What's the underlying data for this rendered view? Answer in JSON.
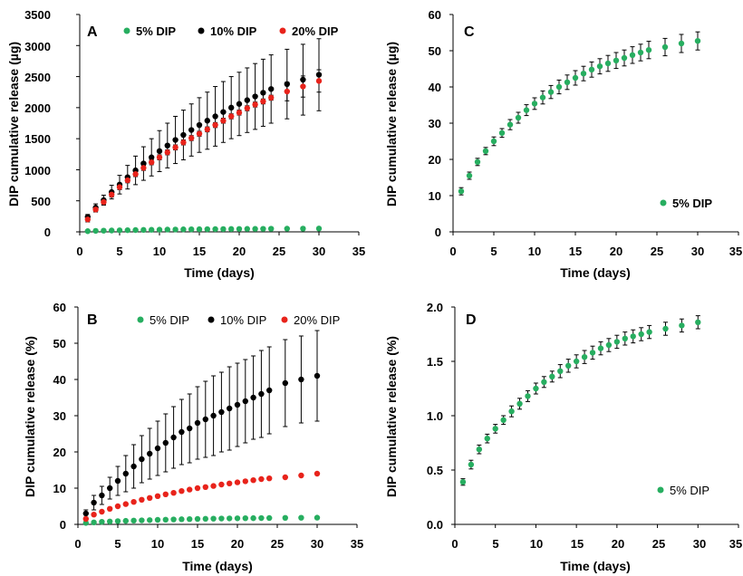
{
  "chart_data": [
    {
      "panel": "A",
      "type": "scatter",
      "xlabel": "Time (days)",
      "ylabel": "DIP cumulative release (µg)",
      "xlim": [
        0,
        35
      ],
      "ylim": [
        0,
        3500
      ],
      "xticks": [
        "0",
        "5",
        "10",
        "15",
        "20",
        "25",
        "30",
        "35"
      ],
      "yticks": [
        "0",
        "500",
        "1000",
        "1500",
        "2000",
        "2500",
        "3000",
        "3500"
      ],
      "grid": false,
      "legend_position": "top",
      "label_style": "bold",
      "x": [
        1,
        2,
        3,
        4,
        5,
        6,
        7,
        8,
        9,
        10,
        11,
        12,
        13,
        14,
        15,
        16,
        17,
        18,
        19,
        20,
        21,
        22,
        23,
        24,
        26,
        28,
        30
      ],
      "series": [
        {
          "name": "5% DIP",
          "color": "#27ae60",
          "values": [
            11,
            16,
            19,
            22,
            25,
            27,
            29,
            31,
            33,
            35,
            37,
            38,
            40,
            41,
            42,
            43,
            44,
            45,
            46,
            47,
            48,
            48,
            49,
            50,
            51,
            52,
            53
          ],
          "errors": [
            1,
            1,
            1,
            1,
            1,
            1,
            1,
            1,
            2,
            2,
            2,
            2,
            2,
            2,
            2,
            2,
            2,
            2,
            2,
            2,
            2,
            2,
            2,
            2,
            2,
            2,
            2
          ]
        },
        {
          "name": "10% DIP",
          "color": "#000000",
          "values": [
            240,
            390,
            510,
            640,
            760,
            880,
            990,
            1100,
            1200,
            1300,
            1390,
            1480,
            1560,
            1640,
            1720,
            1790,
            1860,
            1930,
            2000,
            2060,
            2120,
            2180,
            2240,
            2300,
            2380,
            2450,
            2530
          ],
          "errors": [
            40,
            60,
            80,
            110,
            150,
            190,
            230,
            270,
            300,
            330,
            360,
            380,
            400,
            420,
            440,
            460,
            480,
            490,
            500,
            510,
            520,
            530,
            540,
            550,
            560,
            570,
            580
          ]
        },
        {
          "name": "20% DIP",
          "color": "#e8231b",
          "values": [
            200,
            360,
            480,
            600,
            720,
            830,
            930,
            1030,
            1120,
            1200,
            1280,
            1360,
            1440,
            1510,
            1580,
            1650,
            1720,
            1790,
            1860,
            1920,
            1990,
            2050,
            2100,
            2160,
            2260,
            2340,
            2430
          ],
          "errors": [
            40,
            40,
            40,
            40,
            40,
            40,
            40,
            40,
            40,
            40,
            40,
            40,
            40,
            40,
            40,
            40,
            40,
            40,
            40,
            40,
            40,
            40,
            40,
            40,
            150,
            170,
            180
          ]
        }
      ]
    },
    {
      "panel": "B",
      "type": "scatter",
      "xlabel": "Time (days)",
      "ylabel": "DIP cumulative release (%)",
      "xlim": [
        0,
        35
      ],
      "ylim": [
        0,
        60
      ],
      "xticks": [
        "0",
        "5",
        "10",
        "15",
        "20",
        "25",
        "30",
        "35"
      ],
      "yticks": [
        "0",
        "10",
        "20",
        "30",
        "40",
        "50",
        "60"
      ],
      "grid": false,
      "legend_position": "top",
      "label_style": "light",
      "x": [
        1,
        2,
        3,
        4,
        5,
        6,
        7,
        8,
        9,
        10,
        11,
        12,
        13,
        14,
        15,
        16,
        17,
        18,
        19,
        20,
        21,
        22,
        23,
        24,
        26,
        28,
        30
      ],
      "series": [
        {
          "name": "5% DIP",
          "color": "#27ae60",
          "values": [
            0.4,
            0.55,
            0.7,
            0.8,
            0.9,
            0.97,
            1.05,
            1.12,
            1.18,
            1.25,
            1.3,
            1.36,
            1.41,
            1.45,
            1.5,
            1.54,
            1.58,
            1.62,
            1.65,
            1.68,
            1.7,
            1.72,
            1.74,
            1.76,
            1.8,
            1.83,
            1.85
          ],
          "errors": [
            0,
            0,
            0,
            0,
            0,
            0,
            0,
            0,
            0,
            0,
            0,
            0,
            0,
            0,
            0,
            0,
            0,
            0,
            0,
            0,
            0,
            0,
            0,
            0,
            0,
            0,
            0
          ]
        },
        {
          "name": "10% DIP",
          "color": "#000000",
          "values": [
            3,
            6,
            8,
            10,
            12,
            14,
            16,
            18,
            19.5,
            21,
            22.5,
            24,
            25.5,
            26.5,
            28,
            29,
            30,
            31,
            32,
            33,
            34,
            35,
            36,
            37,
            39,
            40,
            41
          ],
          "errors": [
            1,
            2,
            2.5,
            3,
            4,
            5,
            6,
            6.5,
            7,
            7.5,
            8,
            8.5,
            9,
            9.5,
            10,
            10.5,
            11,
            11,
            11.5,
            11.5,
            11.5,
            11.5,
            12,
            12,
            12,
            12,
            12.5
          ]
        },
        {
          "name": "20% DIP",
          "color": "#e8231b",
          "values": [
            1.5,
            2.7,
            3.5,
            4.3,
            5,
            5.6,
            6.2,
            6.8,
            7.3,
            7.8,
            8.3,
            8.7,
            9.2,
            9.6,
            10,
            10.3,
            10.6,
            11,
            11.3,
            11.6,
            11.9,
            12.2,
            12.5,
            12.7,
            13,
            13.5,
            14
          ],
          "errors": [
            0,
            0,
            0,
            0,
            0,
            0,
            0,
            0,
            0,
            0,
            0,
            0,
            0,
            0,
            0,
            0,
            0,
            0,
            0,
            0,
            0,
            0,
            0,
            0,
            0,
            0,
            0
          ]
        }
      ]
    },
    {
      "panel": "C",
      "type": "scatter",
      "xlabel": "Time (days)",
      "ylabel": "DIP cumulative release (µg)",
      "xlim": [
        0,
        35
      ],
      "ylim": [
        0,
        60
      ],
      "xticks": [
        "0",
        "5",
        "10",
        "15",
        "20",
        "25",
        "30",
        "35"
      ],
      "yticks": [
        "0",
        "10",
        "20",
        "30",
        "40",
        "50",
        "60"
      ],
      "grid": false,
      "legend_position": "bottom-right",
      "label_style": "bold",
      "x": [
        1,
        2,
        3,
        4,
        5,
        6,
        7,
        8,
        9,
        10,
        11,
        12,
        13,
        14,
        15,
        16,
        17,
        18,
        19,
        20,
        21,
        22,
        23,
        24,
        26,
        28,
        30
      ],
      "series": [
        {
          "name": "5% DIP",
          "color": "#27ae60",
          "values": [
            11.2,
            15.5,
            19.3,
            22.3,
            25,
            27.3,
            29.6,
            31.5,
            33.6,
            35.4,
            37.1,
            38.6,
            40,
            41.3,
            42.5,
            43.7,
            44.8,
            45.7,
            46.5,
            47.3,
            48,
            48.8,
            49.5,
            50.2,
            51,
            52,
            52.7
          ],
          "errors": [
            1,
            1,
            1,
            1,
            1.2,
            1.2,
            1.4,
            1.5,
            1.5,
            1.6,
            1.8,
            1.8,
            1.9,
            2,
            2,
            2,
            2.1,
            2.1,
            2.2,
            2.2,
            2.2,
            2.3,
            2.3,
            2.4,
            2.4,
            2.5,
            2.5
          ]
        }
      ]
    },
    {
      "panel": "D",
      "type": "scatter",
      "xlabel": "Time (days)",
      "ylabel": "DIP cumulative release (%)",
      "xlim": [
        0,
        35
      ],
      "ylim": [
        0,
        2.0
      ],
      "xticks": [
        "0",
        "5",
        "10",
        "15",
        "20",
        "25",
        "30",
        "35"
      ],
      "yticks": [
        "0.0",
        "0.5",
        "1.0",
        "1.5",
        "2.0"
      ],
      "grid": false,
      "legend_position": "bottom-right",
      "label_style": "light",
      "x": [
        1,
        2,
        3,
        4,
        5,
        6,
        7,
        8,
        9,
        10,
        11,
        12,
        13,
        14,
        15,
        16,
        17,
        18,
        19,
        20,
        21,
        22,
        23,
        24,
        26,
        28,
        30
      ],
      "series": [
        {
          "name": "5% DIP",
          "color": "#27ae60",
          "values": [
            0.39,
            0.55,
            0.69,
            0.79,
            0.88,
            0.96,
            1.04,
            1.11,
            1.18,
            1.25,
            1.31,
            1.36,
            1.41,
            1.46,
            1.5,
            1.54,
            1.58,
            1.62,
            1.65,
            1.68,
            1.71,
            1.73,
            1.75,
            1.77,
            1.8,
            1.83,
            1.86
          ],
          "errors": [
            0.03,
            0.04,
            0.04,
            0.04,
            0.04,
            0.04,
            0.05,
            0.05,
            0.05,
            0.05,
            0.05,
            0.05,
            0.06,
            0.06,
            0.06,
            0.06,
            0.06,
            0.06,
            0.06,
            0.06,
            0.06,
            0.06,
            0.06,
            0.06,
            0.06,
            0.06,
            0.06
          ]
        }
      ]
    }
  ]
}
